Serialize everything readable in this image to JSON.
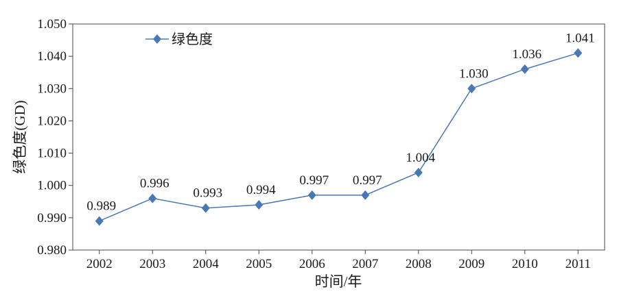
{
  "chart_data": {
    "type": "line",
    "title": "",
    "xlabel": "时间/年",
    "ylabel": "绿色度(GD)",
    "categories": [
      "2002",
      "2003",
      "2004",
      "2005",
      "2006",
      "2007",
      "2008",
      "2009",
      "2010",
      "2011"
    ],
    "series": [
      {
        "name": "绿色度",
        "values": [
          0.989,
          0.996,
          0.993,
          0.994,
          0.997,
          0.997,
          1.004,
          1.03,
          1.036,
          1.041
        ],
        "labels": [
          "0.989",
          "0.996",
          "0.993",
          "0.994",
          "0.997",
          "0.997",
          "1.004",
          "1.030",
          "1.036",
          "1.041"
        ],
        "color": "#4a78b4",
        "marker": "diamond"
      }
    ],
    "ylim": [
      0.98,
      1.05
    ],
    "yticks": [
      0.98,
      0.99,
      1.0,
      1.01,
      1.02,
      1.03,
      1.04,
      1.05
    ],
    "ytick_labels": [
      "0.980",
      "0.990",
      "1.000",
      "1.010",
      "1.020",
      "1.030",
      "1.040",
      "1.050"
    ],
    "legend": "top-left",
    "grid": false
  }
}
